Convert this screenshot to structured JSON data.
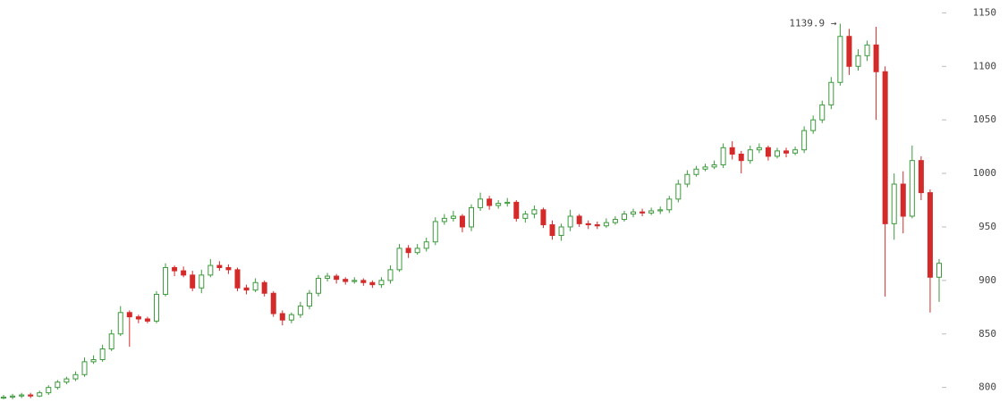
{
  "chart_data": {
    "type": "candlestick",
    "up_color": "#3c9a3c",
    "down_color": "#d42a2a",
    "ylim": [
      778,
      1162
    ],
    "yticks": [
      800,
      850,
      900,
      950,
      1000,
      1050,
      1100,
      1150
    ],
    "max_label": "1139.9 →",
    "open": [
      790,
      791,
      792,
      793,
      792,
      795,
      800,
      805,
      808,
      812,
      824,
      826,
      836,
      850,
      870,
      866,
      864,
      862,
      887,
      912,
      909,
      905,
      893,
      905,
      914,
      912,
      910,
      893,
      891,
      898,
      888,
      869,
      863,
      868,
      876,
      888,
      902,
      904,
      901,
      899,
      900,
      898,
      896,
      900,
      910,
      930,
      926,
      930,
      936,
      955,
      958,
      960,
      950,
      968,
      976,
      970,
      972,
      973,
      958,
      962,
      966,
      952,
      942,
      950,
      960,
      953,
      952,
      951,
      954,
      957,
      962,
      964,
      963,
      965,
      966,
      976,
      990,
      999,
      1004,
      1006,
      1008,
      1024,
      1018,
      1012,
      1022,
      1024,
      1016,
      1021,
      1019,
      1022,
      1040,
      1050,
      1064,
      1085,
      1128,
      1100,
      1110,
      1120,
      1095,
      953,
      990,
      960,
      1012,
      982,
      903
    ],
    "high": [
      793,
      794,
      795,
      795,
      797,
      802,
      807,
      810,
      815,
      828,
      830,
      840,
      854,
      876,
      872,
      868,
      866,
      890,
      916,
      914,
      913,
      909,
      910,
      920,
      918,
      915,
      912,
      896,
      902,
      900,
      890,
      872,
      870,
      880,
      891,
      905,
      907,
      906,
      903,
      903,
      902,
      900,
      903,
      914,
      934,
      933,
      934,
      940,
      959,
      962,
      965,
      962,
      971,
      982,
      979,
      975,
      977,
      975,
      965,
      970,
      968,
      956,
      953,
      966,
      962,
      956,
      955,
      958,
      960,
      965,
      967,
      967,
      968,
      969,
      979,
      994,
      1003,
      1007,
      1009,
      1012,
      1028,
      1030,
      1021,
      1026,
      1028,
      1026,
      1024,
      1024,
      1025,
      1044,
      1054,
      1068,
      1090,
      1139.9,
      1135,
      1116,
      1124,
      1137,
      1100,
      1000,
      1002,
      1026,
      1016,
      985,
      920
    ],
    "low": [
      789,
      789,
      790,
      790,
      791,
      793,
      798,
      803,
      806,
      810,
      822,
      824,
      834,
      848,
      838,
      860,
      860,
      860,
      885,
      904,
      903,
      890,
      888,
      903,
      909,
      906,
      890,
      887,
      889,
      885,
      866,
      858,
      860,
      865,
      873,
      885,
      899,
      897,
      896,
      897,
      895,
      893,
      893,
      897,
      908,
      921,
      924,
      927,
      933,
      952,
      955,
      945,
      946,
      965,
      966,
      967,
      969,
      955,
      954,
      958,
      949,
      938,
      937,
      946,
      950,
      948,
      948,
      949,
      952,
      955,
      959,
      960,
      961,
      962,
      963,
      973,
      987,
      997,
      1002,
      1004,
      1005,
      1013,
      1000,
      1009,
      1019,
      1012,
      1014,
      1015,
      1017,
      1019,
      1037,
      1047,
      1060,
      1082,
      1092,
      1096,
      1105,
      1050,
      885,
      938,
      944,
      958,
      975,
      870,
      880
    ],
    "close": [
      791,
      792,
      793,
      792,
      795,
      800,
      805,
      808,
      812,
      824,
      826,
      836,
      850,
      870,
      866,
      864,
      862,
      887,
      912,
      909,
      905,
      893,
      905,
      914,
      912,
      910,
      893,
      891,
      898,
      888,
      869,
      863,
      868,
      876,
      888,
      902,
      904,
      901,
      899,
      900,
      898,
      896,
      900,
      910,
      930,
      926,
      930,
      936,
      955,
      958,
      960,
      950,
      968,
      976,
      970,
      972,
      973,
      958,
      962,
      966,
      952,
      942,
      950,
      960,
      953,
      952,
      951,
      954,
      957,
      962,
      964,
      963,
      965,
      966,
      976,
      990,
      999,
      1004,
      1006,
      1008,
      1024,
      1018,
      1012,
      1022,
      1024,
      1016,
      1021,
      1019,
      1022,
      1040,
      1050,
      1064,
      1085,
      1128,
      1100,
      1110,
      1120,
      1095,
      953,
      990,
      960,
      1012,
      982,
      903,
      916
    ]
  }
}
